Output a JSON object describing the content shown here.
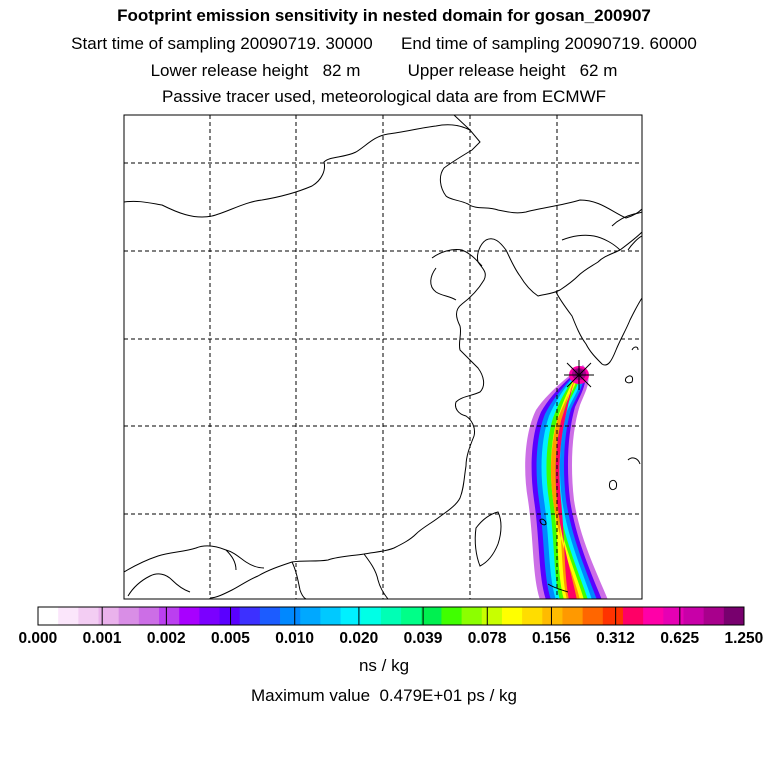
{
  "title": "Footprint emission sensitivity in nested domain for gosan_200907",
  "start_label": "Start time of sampling 20090719. 30000",
  "end_label": "End time of sampling 20090719. 60000",
  "lower_label": "Lower release height   82 m",
  "upper_label": "Upper release height   62 m",
  "info_line": "Passive tracer used, meteorological data are from ECMWF",
  "colorbar": {
    "ticks": [
      "0.000",
      "0.001",
      "0.002",
      "0.005",
      "0.010",
      "0.020",
      "0.039",
      "0.078",
      "0.156",
      "0.312",
      "0.625",
      "1.250"
    ],
    "units": "ns / kg",
    "colors": [
      "#ffffff",
      "#fbe6fb",
      "#f3cdf3",
      "#eab2ec",
      "#d98ee6",
      "#cc6ee6",
      "#bb3ff0",
      "#a800ff",
      "#7b00ff",
      "#5a00ff",
      "#3d30ff",
      "#1c5cff",
      "#0088ff",
      "#00a8ff",
      "#00c9ff",
      "#00f0ff",
      "#00ffe6",
      "#00ffb5",
      "#00ff88",
      "#00f050",
      "#40ff00",
      "#8cff00",
      "#c8ff00",
      "#ffff00",
      "#ffdd00",
      "#ffbb00",
      "#ff9900",
      "#ff6600",
      "#ff3300",
      "#ff0066",
      "#ff00a8",
      "#e600b4",
      "#c800a8",
      "#a8008c",
      "#78006e"
    ]
  },
  "max_value_text": "Maximum value  0.479E+01 ps / kg",
  "receptor_marker": "receptor-star-icon"
}
